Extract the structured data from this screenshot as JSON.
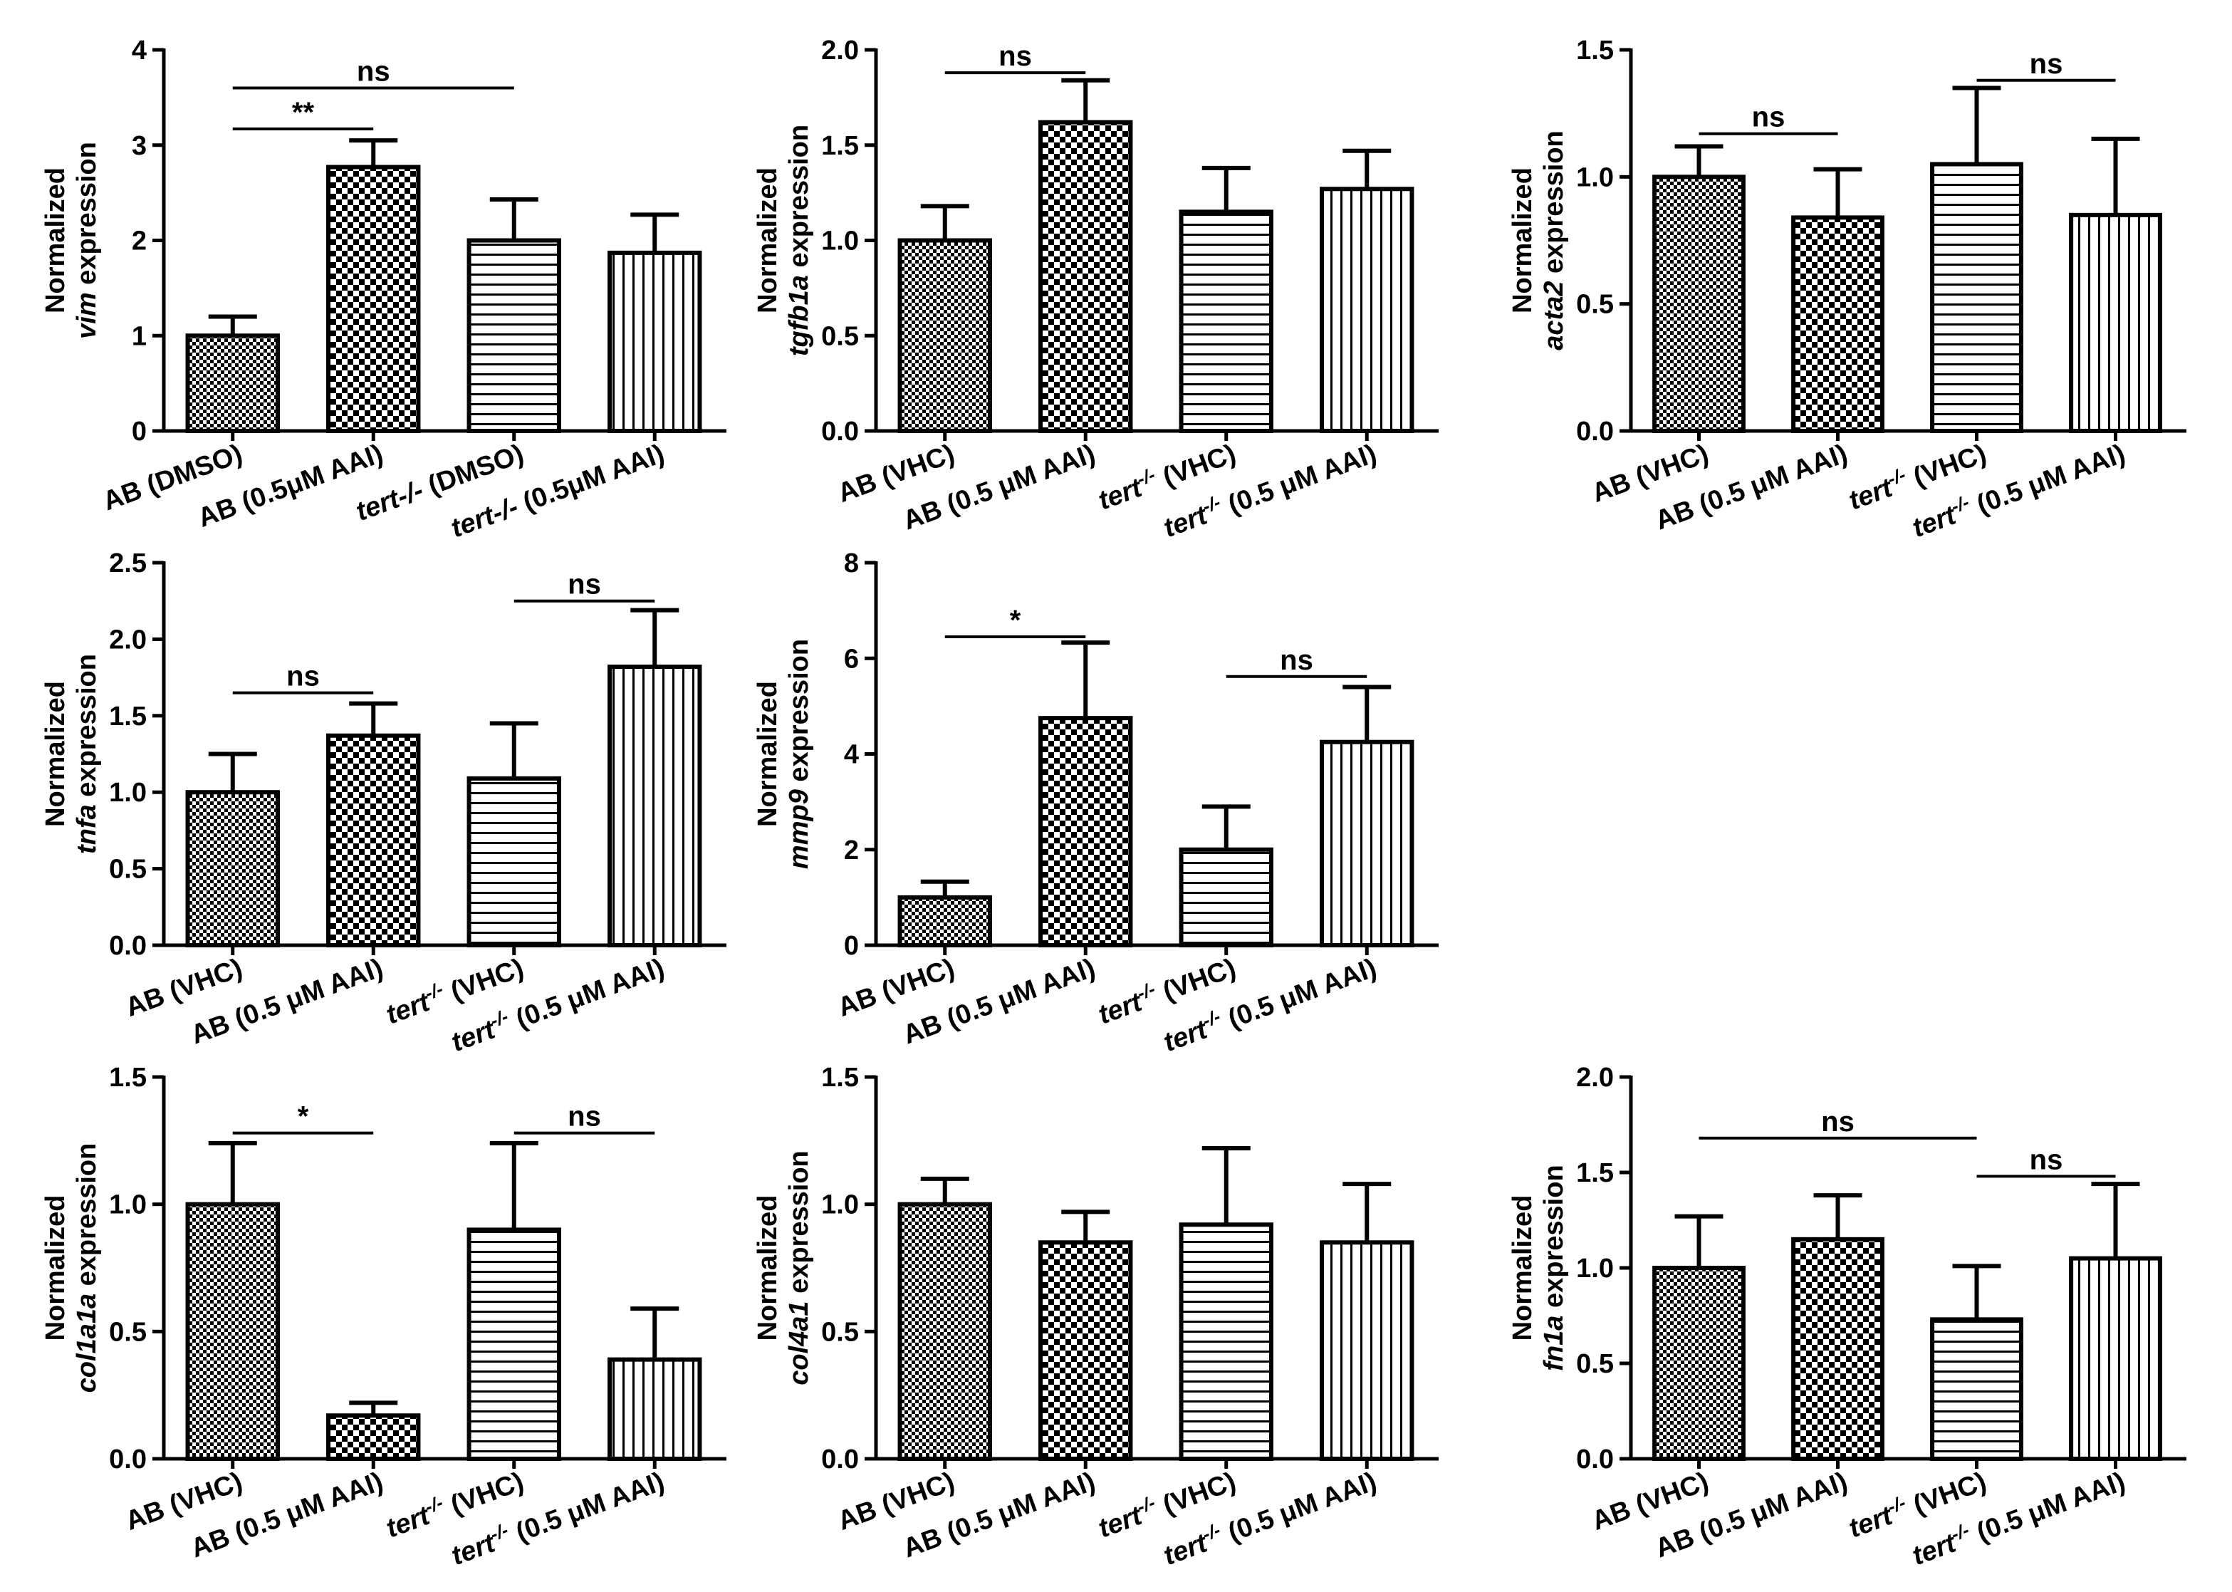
{
  "chart_data": [
    {
      "type": "bar",
      "gene": "vim",
      "ylabel_line1": "Normalized",
      "ylabel_gene": "vim",
      "ylabel_suffix": " expression",
      "ylim": [
        0,
        4
      ],
      "yticks": [
        "0",
        "1",
        "2",
        "3",
        "4"
      ],
      "categories": [
        {
          "label": "AB (DMSO)",
          "pattern": "checker-small",
          "value": 1.0,
          "err": 0.2
        },
        {
          "label": "AB (0.5μM AAI)",
          "pattern": "checker-large",
          "value": 2.77,
          "err": 0.28
        },
        {
          "label": "tert-/- (DMSO)",
          "italic_part": "tert-/-",
          "rest": " (DMSO)",
          "pattern": "hlines",
          "value": 2.0,
          "err": 0.43
        },
        {
          "label": "tert-/- (0.5μM AAI)",
          "italic_part": "tert-/-",
          "rest": " (0.5μM AAI)",
          "pattern": "vlines",
          "value": 1.87,
          "err": 0.4
        }
      ],
      "significance": [
        {
          "from": 0,
          "to": 2,
          "label": "ns",
          "level": 3.6
        },
        {
          "from": 0,
          "to": 1,
          "label": "**",
          "level": 3.17
        }
      ]
    },
    {
      "type": "bar",
      "gene": "tgfb1a",
      "ylabel_line1": "Normalized",
      "ylabel_gene": "tgfb1a",
      "ylabel_suffix": " expression",
      "ylim": [
        0,
        2.0
      ],
      "yticks": [
        "0.0",
        "0.5",
        "1.0",
        "1.5",
        "2.0"
      ],
      "categories": [
        {
          "label": "AB (VHC)",
          "pattern": "checker-small",
          "value": 1.0,
          "err": 0.18
        },
        {
          "label": "AB (0.5 μM AAI)",
          "pattern": "checker-large",
          "value": 1.62,
          "err": 0.22
        },
        {
          "label": "tert-/- (VHC)",
          "italic_part": "tert",
          "sup": "-/-",
          "rest": " (VHC)",
          "pattern": "hlines",
          "value": 1.15,
          "err": 0.23
        },
        {
          "label": "tert-/- (0.5 μM AAI)",
          "italic_part": "tert",
          "sup": "-/-",
          "rest": " (0.5 μM AAI)",
          "pattern": "vlines",
          "value": 1.27,
          "err": 0.2
        }
      ],
      "significance": [
        {
          "from": 0,
          "to": 1,
          "label": "ns",
          "level": 1.88
        }
      ]
    },
    {
      "type": "bar",
      "gene": "acta2",
      "ylabel_line1": "Normalized",
      "ylabel_gene": "acta2",
      "ylabel_suffix": " expression",
      "ylim": [
        0,
        1.5
      ],
      "yticks": [
        "0.0",
        "0.5",
        "1.0",
        "1.5"
      ],
      "categories": [
        {
          "label": "AB (VHC)",
          "pattern": "checker-small",
          "value": 1.0,
          "err": 0.12
        },
        {
          "label": "AB (0.5 μM AAI)",
          "pattern": "checker-large",
          "value": 0.84,
          "err": 0.19
        },
        {
          "label": "tert-/- (VHC)",
          "italic_part": "tert",
          "sup": "-/-",
          "rest": " (VHC)",
          "pattern": "hlines",
          "value": 1.05,
          "err": 0.3
        },
        {
          "label": "tert-/- (0.5 μM AAI)",
          "italic_part": "tert",
          "sup": "-/-",
          "rest": " (0.5 μM AAI)",
          "pattern": "vlines",
          "value": 0.85,
          "err": 0.3
        }
      ],
      "significance": [
        {
          "from": 0,
          "to": 1,
          "label": "ns",
          "level": 1.17
        },
        {
          "from": 2,
          "to": 3,
          "label": "ns",
          "level": 1.38
        }
      ]
    },
    {
      "type": "bar",
      "gene": "tnfa",
      "ylabel_line1": "Normalized",
      "ylabel_gene": "tnfa",
      "ylabel_suffix": " expression",
      "ylim": [
        0,
        2.5
      ],
      "yticks": [
        "0.0",
        "0.5",
        "1.0",
        "1.5",
        "2.0",
        "2.5"
      ],
      "categories": [
        {
          "label": "AB (VHC)",
          "pattern": "checker-small",
          "value": 1.0,
          "err": 0.25
        },
        {
          "label": "AB (0.5 μM AAI)",
          "pattern": "checker-large",
          "value": 1.37,
          "err": 0.21
        },
        {
          "label": "tert-/- (VHC)",
          "italic_part": "tert",
          "sup": "-/-",
          "rest": " (VHC)",
          "pattern": "hlines",
          "value": 1.09,
          "err": 0.36
        },
        {
          "label": "tert-/- (0.5 μM AAI)",
          "italic_part": "tert",
          "sup": "-/-",
          "rest": " (0.5 μM AAI)",
          "pattern": "vlines",
          "value": 1.82,
          "err": 0.37
        }
      ],
      "significance": [
        {
          "from": 0,
          "to": 1,
          "label": "ns",
          "level": 1.65
        },
        {
          "from": 2,
          "to": 3,
          "label": "ns",
          "level": 2.25
        }
      ]
    },
    {
      "type": "bar",
      "gene": "mmp9",
      "ylabel_line1": "Normalized",
      "ylabel_gene": "mmp9",
      "ylabel_suffix": " expression",
      "ylim": [
        0,
        8
      ],
      "yticks": [
        "0",
        "2",
        "4",
        "6",
        "8"
      ],
      "categories": [
        {
          "label": "AB (VHC)",
          "pattern": "checker-small",
          "value": 1.0,
          "err": 0.33
        },
        {
          "label": "AB (0.5 μM AAI)",
          "pattern": "checker-large",
          "value": 4.75,
          "err": 1.58
        },
        {
          "label": "tert-/- (VHC)",
          "italic_part": "tert",
          "sup": "-/-",
          "rest": " (VHC)",
          "pattern": "hlines",
          "value": 2.0,
          "err": 0.9
        },
        {
          "label": "tert-/- (0.5 μM AAI)",
          "italic_part": "tert",
          "sup": "-/-",
          "rest": " (0.5 μM AAI)",
          "pattern": "vlines",
          "value": 4.25,
          "err": 1.15
        }
      ],
      "significance": [
        {
          "from": 0,
          "to": 1,
          "label": "*",
          "level": 6.45
        },
        {
          "from": 2,
          "to": 3,
          "label": "ns",
          "level": 5.62
        }
      ]
    },
    {
      "type": "bar",
      "gene": "col1a1a",
      "ylabel_line1": "Normalized",
      "ylabel_gene": "col1a1a",
      "ylabel_suffix": " expression",
      "ylim": [
        0,
        1.5
      ],
      "yticks": [
        "0.0",
        "0.5",
        "1.0",
        "1.5"
      ],
      "categories": [
        {
          "label": "AB (VHC)",
          "pattern": "checker-small",
          "value": 1.0,
          "err": 0.24
        },
        {
          "label": "AB (0.5 μM AAI)",
          "pattern": "checker-large",
          "value": 0.17,
          "err": 0.05
        },
        {
          "label": "tert-/- (VHC)",
          "italic_part": "tert",
          "sup": "-/-",
          "rest": " (VHC)",
          "pattern": "hlines",
          "value": 0.9,
          "err": 0.34
        },
        {
          "label": "tert-/- (0.5 μM AAI)",
          "italic_part": "tert",
          "sup": "-/-",
          "rest": " (0.5 μM AAI)",
          "pattern": "vlines",
          "value": 0.39,
          "err": 0.2
        }
      ],
      "significance": [
        {
          "from": 0,
          "to": 1,
          "label": "*",
          "level": 1.28
        },
        {
          "from": 2,
          "to": 3,
          "label": "ns",
          "level": 1.28
        }
      ]
    },
    {
      "type": "bar",
      "gene": "col4a1",
      "ylabel_line1": "Normalized",
      "ylabel_gene": "col4a1",
      "ylabel_suffix": " expression",
      "ylim": [
        0,
        1.5
      ],
      "yticks": [
        "0.0",
        "0.5",
        "1.0",
        "1.5"
      ],
      "categories": [
        {
          "label": "AB (VHC)",
          "pattern": "checker-small",
          "value": 1.0,
          "err": 0.1
        },
        {
          "label": "AB (0.5 μM AAI)",
          "pattern": "checker-large",
          "value": 0.85,
          "err": 0.12
        },
        {
          "label": "tert-/- (VHC)",
          "italic_part": "tert",
          "sup": "-/-",
          "rest": " (VHC)",
          "pattern": "hlines",
          "value": 0.92,
          "err": 0.3
        },
        {
          "label": "tert-/- (0.5 μM AAI)",
          "italic_part": "tert",
          "sup": "-/-",
          "rest": " (0.5 μM AAI)",
          "pattern": "vlines",
          "value": 0.85,
          "err": 0.23
        }
      ],
      "significance": []
    },
    {
      "type": "bar",
      "gene": "fn1a",
      "ylabel_line1": "Normalized",
      "ylabel_gene": "fn1a",
      "ylabel_suffix": " expression",
      "ylim": [
        0,
        2.0
      ],
      "yticks": [
        "0.0",
        "0.5",
        "1.0",
        "1.5",
        "2.0"
      ],
      "categories": [
        {
          "label": "AB (VHC)",
          "pattern": "checker-small",
          "value": 1.0,
          "err": 0.27
        },
        {
          "label": "AB (0.5 μM AAI)",
          "pattern": "checker-large",
          "value": 1.15,
          "err": 0.23
        },
        {
          "label": "tert-/- (VHC)",
          "italic_part": "tert",
          "sup": "-/-",
          "rest": " (VHC)",
          "pattern": "hlines",
          "value": 0.73,
          "err": 0.28
        },
        {
          "label": "tert-/- (0.5 μM AAI)",
          "italic_part": "tert",
          "sup": "-/-",
          "rest": " (0.5 μM AAI)",
          "pattern": "vlines",
          "value": 1.05,
          "err": 0.39
        }
      ],
      "significance": [
        {
          "from": 0,
          "to": 2,
          "label": "ns",
          "level": 1.68
        },
        {
          "from": 2,
          "to": 3,
          "label": "ns",
          "level": 1.48
        }
      ]
    }
  ]
}
